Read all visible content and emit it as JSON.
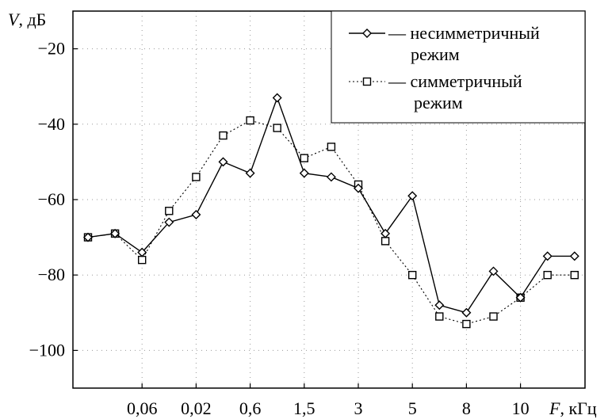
{
  "chart_data": {
    "type": "line",
    "title": "",
    "ylabel": {
      "var": "V",
      "unit": ", дБ"
    },
    "xlabel": {
      "var": "F",
      "unit": ", кГц"
    },
    "ylim": [
      -110,
      -10
    ],
    "xlim": [
      0,
      13.6
    ],
    "y_ticks": [
      -20,
      -40,
      -60,
      -80,
      -100
    ],
    "x_ticks": [
      {
        "pos": 1,
        "label": "0,06"
      },
      {
        "pos": 2,
        "label": "0,02"
      },
      {
        "pos": 3,
        "label": "0,6"
      },
      {
        "pos": 4,
        "label": "1,5"
      },
      {
        "pos": 5,
        "label": "3"
      },
      {
        "pos": 6,
        "label": "5"
      },
      {
        "pos": 7,
        "label": "8"
      },
      {
        "pos": 8,
        "label": "10"
      }
    ],
    "grid": true,
    "legend_position": "top-right",
    "series": [
      {
        "name": [
          "— несимметричный",
          "режим"
        ],
        "marker": "diamond",
        "line": "solid",
        "color": "#000000",
        "x": [
          0,
          0.5,
          1,
          1.5,
          2,
          2.5,
          3,
          3.5,
          4,
          4.5,
          5,
          5.5,
          6,
          6.5,
          7,
          7.5,
          8,
          8.5,
          9
        ],
        "y": [
          -70,
          -69,
          -74,
          -66,
          -64,
          -50,
          -53,
          -33,
          -53,
          -54,
          -57,
          -69,
          -59,
          -88,
          -90,
          -79,
          -86,
          -75,
          -75
        ]
      },
      {
        "name": [
          "— симметричный",
          "режим"
        ],
        "marker": "square",
        "line": "dotted",
        "color": "#000000",
        "x": [
          0,
          0.5,
          1,
          1.5,
          2,
          2.5,
          3,
          3.5,
          4,
          4.5,
          5,
          5.5,
          6,
          6.5,
          7,
          7.5,
          8,
          8.5,
          9
        ],
        "y": [
          -70,
          -69,
          -76,
          -63,
          -54,
          -43,
          -39,
          -41,
          -49,
          -46,
          -56,
          -71,
          -80,
          -91,
          -93,
          -91,
          -86,
          -80,
          -80
        ]
      }
    ]
  }
}
